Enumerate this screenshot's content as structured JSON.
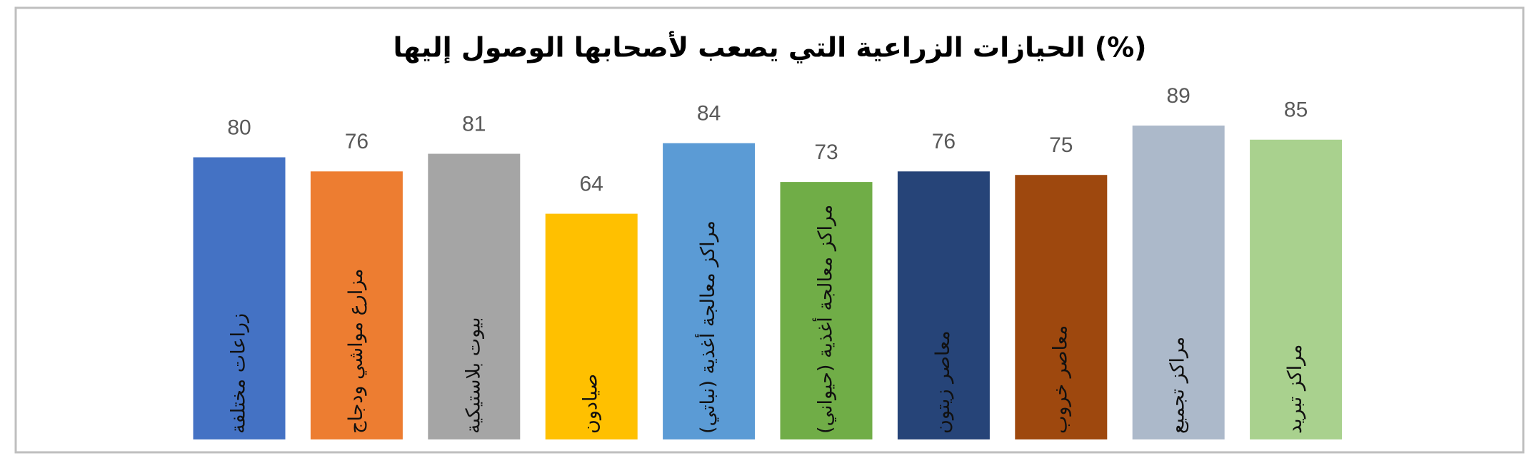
{
  "chart_data": {
    "type": "bar",
    "title": "الحيازات الزراعية التي يصعب لأصحابها الوصول إليها (%)",
    "categories": [
      "زراعات مختلفة",
      "مزارع مواشي ودجاج",
      "بيوت بلاستيكية",
      "صيادون",
      "مراكز معالجة أغذية (نباتي)",
      "مراكز معالجة أغذية (حيواني)",
      "معاصر زيتون",
      "معاصر خروب",
      "مراكز تجميع",
      "مراكز تبريد"
    ],
    "values": [
      80,
      76,
      81,
      64,
      84,
      73,
      76,
      75,
      89,
      85
    ],
    "colors": [
      "#4472c4",
      "#ed7d31",
      "#a5a5a5",
      "#ffc000",
      "#5b9bd5",
      "#70ad47",
      "#264478",
      "#9e480e",
      "#acb9ca",
      "#a9d18e"
    ]
  }
}
